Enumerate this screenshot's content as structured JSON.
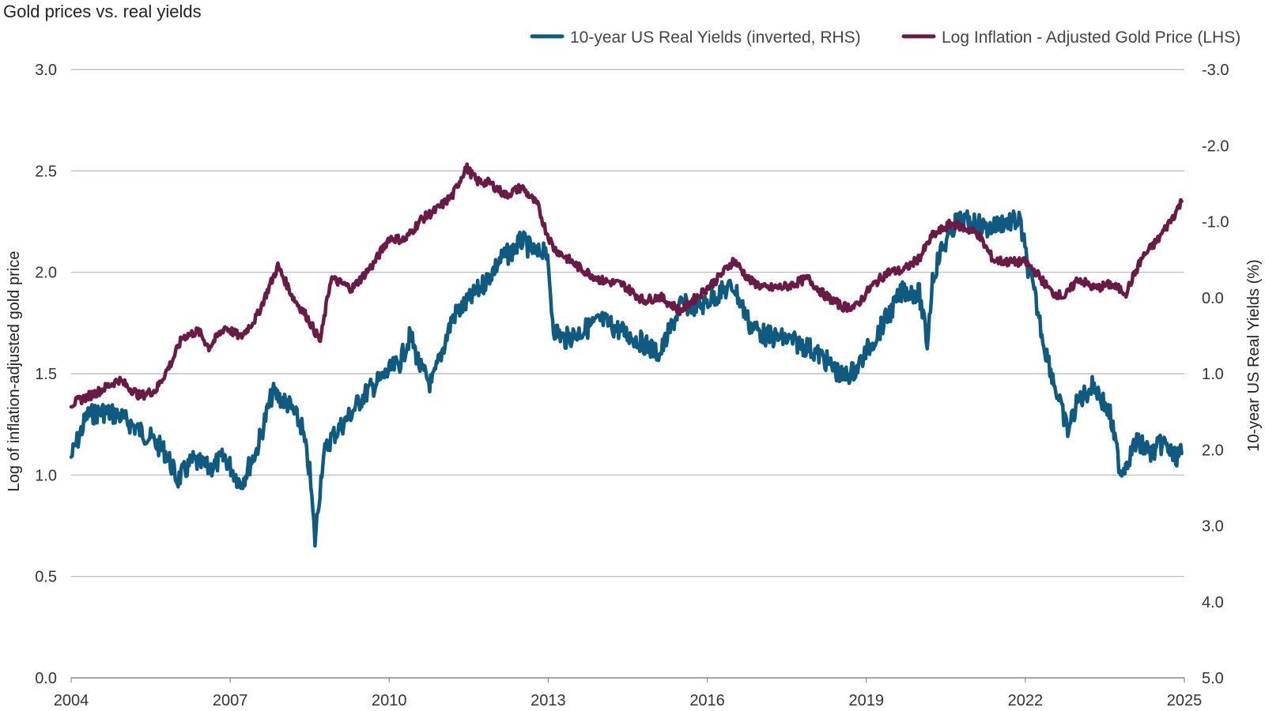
{
  "chart_data": {
    "type": "line",
    "title": "Gold prices vs. real yields",
    "y_left_label": "Log of inflation-adjusted gold price",
    "y_right_label": "10-year US Real Yields (%)",
    "x_ticks": [
      "2004",
      "2007",
      "2010",
      "2013",
      "2016",
      "2019",
      "2022",
      "2025"
    ],
    "x_range": [
      2004,
      2025
    ],
    "y_left_ticks": [
      "0.0",
      "0.5",
      "1.0",
      "1.5",
      "2.0",
      "2.5",
      "3.0"
    ],
    "y_left_range": [
      0,
      3
    ],
    "y_right_ticks": [
      "5.0",
      "4.0",
      "3.0",
      "2.0",
      "1.0",
      "0.0",
      "-1.0",
      "-2.0",
      "-3.0"
    ],
    "y_right_range": [
      5,
      -3
    ],
    "y_right_inverted": true,
    "grid": true,
    "legend_position": "top-right",
    "series": [
      {
        "name": "Log Inflation - Adjusted Gold Price (LHS)",
        "axis": "left",
        "color": "#6b1a45",
        "x": [
          2004.0,
          2004.5,
          2004.9,
          2005.3,
          2005.6,
          2005.9,
          2006.1,
          2006.4,
          2006.6,
          2006.9,
          2007.2,
          2007.5,
          2007.9,
          2008.2,
          2008.45,
          2008.7,
          2008.9,
          2009.3,
          2009.7,
          2010.0,
          2010.3,
          2010.6,
          2010.9,
          2011.2,
          2011.45,
          2011.65,
          2011.9,
          2012.2,
          2012.5,
          2012.8,
          2012.95,
          2013.1,
          2013.3,
          2013.6,
          2014.0,
          2014.4,
          2014.8,
          2015.1,
          2015.5,
          2015.9,
          2016.2,
          2016.5,
          2016.8,
          2017.1,
          2017.5,
          2017.9,
          2018.2,
          2018.55,
          2018.8,
          2019.1,
          2019.4,
          2019.7,
          2020.0,
          2020.25,
          2020.6,
          2020.85,
          2021.1,
          2021.4,
          2021.7,
          2022.0,
          2022.2,
          2022.5,
          2022.75,
          2023.0,
          2023.3,
          2023.6,
          2023.9,
          2024.2,
          2024.5,
          2024.8,
          2024.95
        ],
        "values": [
          1.35,
          1.41,
          1.47,
          1.39,
          1.42,
          1.56,
          1.68,
          1.71,
          1.63,
          1.73,
          1.68,
          1.78,
          2.03,
          1.87,
          1.78,
          1.66,
          1.97,
          1.92,
          2.04,
          2.17,
          2.16,
          2.26,
          2.31,
          2.38,
          2.52,
          2.45,
          2.44,
          2.38,
          2.42,
          2.33,
          2.21,
          2.12,
          2.08,
          2.02,
          1.96,
          1.94,
          1.86,
          1.88,
          1.81,
          1.9,
          1.97,
          2.06,
          1.96,
          1.92,
          1.93,
          1.97,
          1.89,
          1.83,
          1.83,
          1.93,
          2.0,
          2.01,
          2.07,
          2.18,
          2.24,
          2.22,
          2.19,
          2.06,
          2.05,
          2.05,
          2.0,
          1.9,
          1.88,
          1.97,
          1.92,
          1.94,
          1.9,
          2.07,
          2.16,
          2.28,
          2.35
        ]
      },
      {
        "name": "10-year US Real Yields (inverted, RHS)",
        "axis": "right",
        "color": "#0f5a80",
        "x": [
          2004.0,
          2004.3,
          2004.6,
          2004.9,
          2005.2,
          2005.5,
          2005.8,
          2006.0,
          2006.3,
          2006.6,
          2006.9,
          2007.2,
          2007.5,
          2007.8,
          2008.1,
          2008.35,
          2008.5,
          2008.6,
          2008.75,
          2008.9,
          2009.2,
          2009.5,
          2009.8,
          2010.2,
          2010.4,
          2010.6,
          2010.8,
          2011.0,
          2011.2,
          2011.5,
          2011.8,
          2012.1,
          2012.3,
          2012.5,
          2012.8,
          2012.95,
          2013.1,
          2013.3,
          2013.6,
          2014.0,
          2014.4,
          2014.8,
          2015.1,
          2015.5,
          2015.9,
          2016.2,
          2016.5,
          2016.8,
          2017.1,
          2017.5,
          2017.9,
          2018.2,
          2018.55,
          2018.8,
          2019.1,
          2019.4,
          2019.7,
          2020.0,
          2020.15,
          2020.25,
          2020.4,
          2020.7,
          2021.0,
          2021.3,
          2021.6,
          2021.9,
          2022.05,
          2022.2,
          2022.35,
          2022.5,
          2022.65,
          2022.8,
          2023.0,
          2023.3,
          2023.6,
          2023.8,
          2024.1,
          2024.4,
          2024.6,
          2024.8,
          2024.95
        ],
        "values": [
          2.1,
          1.55,
          1.5,
          1.55,
          1.7,
          1.85,
          2.05,
          2.4,
          2.15,
          2.25,
          2.1,
          2.45,
          2.0,
          1.25,
          1.4,
          1.7,
          2.3,
          3.2,
          2.1,
          1.85,
          1.6,
          1.3,
          1.1,
          0.85,
          0.5,
          0.95,
          1.15,
          0.7,
          0.25,
          0.05,
          -0.2,
          -0.5,
          -0.6,
          -0.75,
          -0.55,
          -0.7,
          0.4,
          0.55,
          0.45,
          0.3,
          0.45,
          0.6,
          0.75,
          0.1,
          0.1,
          -0.05,
          -0.15,
          0.35,
          0.5,
          0.55,
          0.65,
          0.8,
          1.05,
          0.95,
          0.6,
          0.25,
          -0.1,
          -0.05,
          0.6,
          -0.25,
          -0.6,
          -1.0,
          -1.0,
          -0.9,
          -1.0,
          -1.0,
          -0.4,
          0.05,
          0.6,
          1.0,
          1.4,
          1.75,
          1.35,
          1.15,
          1.55,
          2.3,
          1.9,
          2.05,
          1.9,
          2.1,
          2.05
        ]
      }
    ]
  }
}
